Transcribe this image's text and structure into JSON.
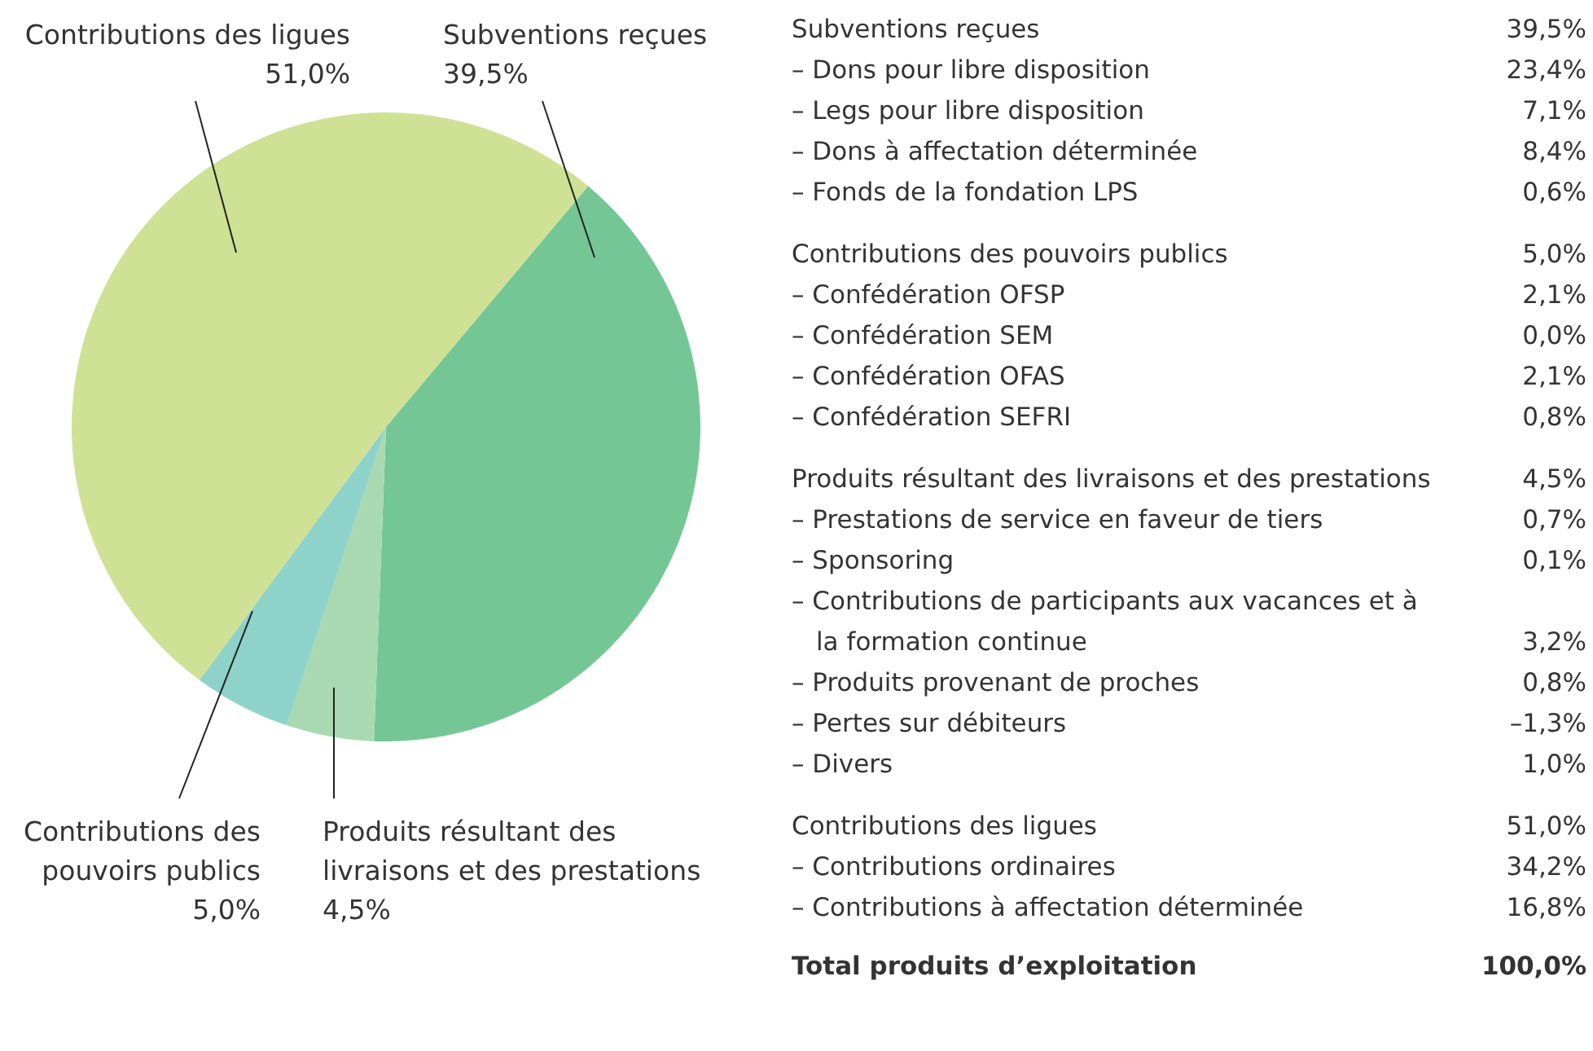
{
  "chart_data": [
    {
      "type": "pie",
      "categories": [
        "Subventions reçues",
        "Produits résultant des livraisons et des prestations",
        "Contributions des pouvoirs publics",
        "Contributions des ligues"
      ],
      "values": [
        39.5,
        4.5,
        5.0,
        51.0
      ],
      "colors": [
        "#74c795",
        "#a8d9b0",
        "#8dd3c9",
        "#cfe195"
      ],
      "value_labels": [
        "39,5%",
        "4,5%",
        "5,0%",
        "51,0%"
      ]
    },
    {
      "type": "other",
      "annotations": [
        "Subventions reçues",
        "39,5%",
        "– Dons pour libre disposition",
        "23,4%",
        "– Legs pour libre disposition",
        "7,1%",
        "– Dons à affectation déterminée",
        "8,4%",
        "– Fonds de la fondation LPS",
        "0,6%"
      ]
    },
    {
      "type": "other",
      "annotations": [
        "Contributions des pouvoirs publics",
        "5,0%",
        "– Confédération OFSP",
        "2,1%",
        "– Confédération SEM",
        "0,0%",
        "– Confédération OFAS",
        "2,1%",
        "– Confédération SEFRI",
        "0,8%"
      ]
    },
    {
      "type": "other",
      "annotations": [
        "Produits résultant des livraisons et des prestations",
        "4,5%",
        "– Prestations de service en faveur de tiers",
        "0,7%",
        "– Sponsoring",
        "0,1%",
        "– Contributions de participants aux vacances et à la formation continue",
        "3,2%",
        "– Produits provenant de proches",
        "0,8%",
        "– Pertes sur débiteurs",
        "–1,3%",
        "– Divers",
        "1,0%"
      ]
    },
    {
      "type": "other",
      "annotations": [
        "Contributions des ligues",
        "51,0%",
        "– Contributions ordinaires",
        "34,2%",
        "– Contributions à affectation déterminée",
        "16,8%"
      ]
    },
    {
      "type": "other",
      "annotations": [
        "Total produits d’exploitation",
        "100,0%"
      ]
    }
  ]
}
